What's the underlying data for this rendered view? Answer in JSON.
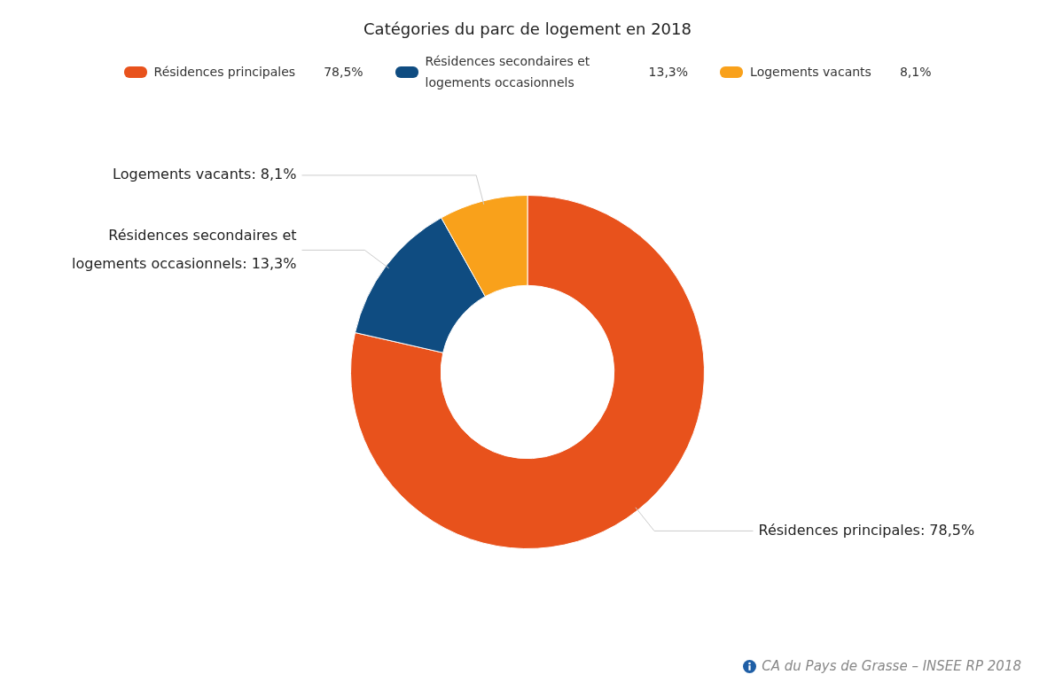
{
  "chart_data": {
    "type": "donut",
    "title": "Catégories du parc de logement en 2018",
    "categories": [
      "Résidences principales",
      "Résidences secondaires et logements occasionnels",
      "Logements vacants"
    ],
    "values": [
      78.5,
      13.3,
      8.1
    ],
    "value_labels": [
      "78,5%",
      "13,3%",
      "8,1%"
    ],
    "colors": [
      "#e8521c",
      "#0f4c81",
      "#f9a11b"
    ],
    "legend": "top",
    "annotations": [
      "CA du Pays de Grasse – INSEE RP 2018",
      "Résidences principales: 78,5%",
      "Résidences secondaires et logements occasionnels: 13,3%",
      "Logements vacants: 8,1%"
    ]
  }
}
